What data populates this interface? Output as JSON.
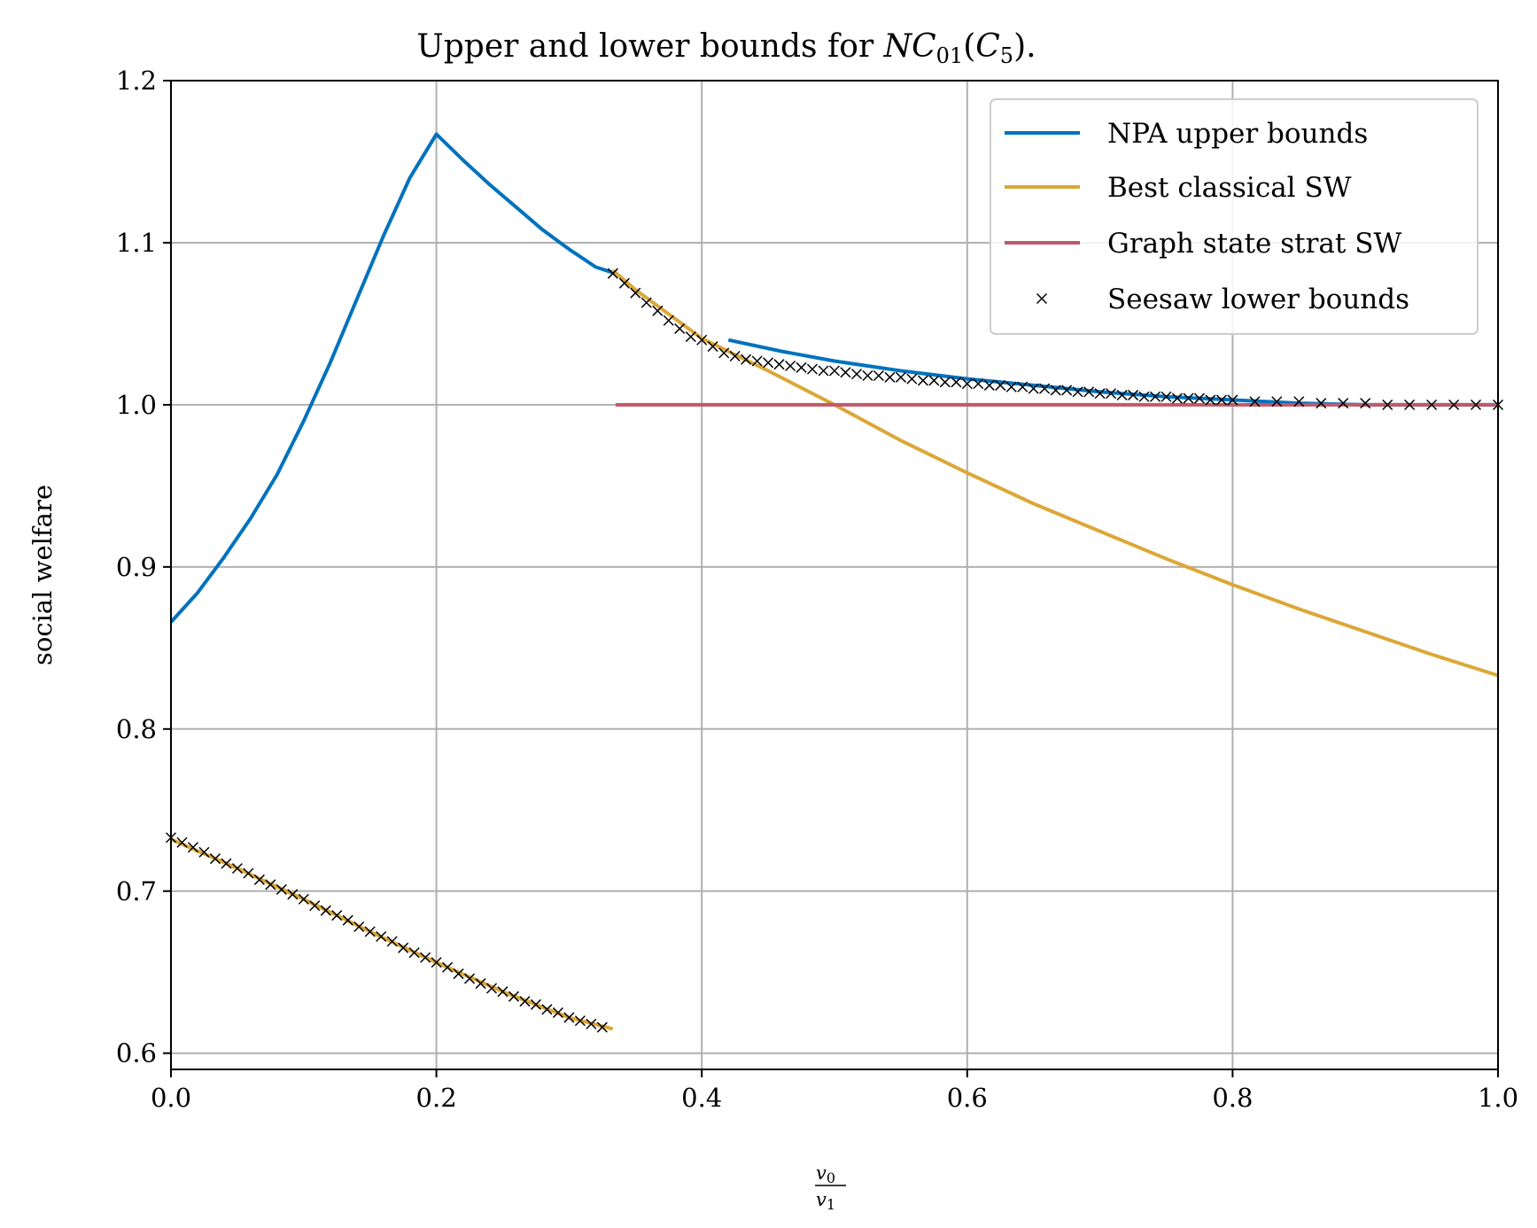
{
  "chart_data": {
    "type": "line",
    "title_prefix": "Upper and lower bounds for ",
    "title_math": {
      "nc": "NC",
      "sub01": "01",
      "open": "(",
      "c": "C",
      "sub5": "5",
      "close": ")."
    },
    "xlabel": {
      "numerator": "v",
      "numerator_sub": "0",
      "denominator": "v",
      "denominator_sub": "1"
    },
    "ylabel": "social welfare",
    "xlim": [
      0.0,
      1.0
    ],
    "ylim": [
      0.59,
      1.2
    ],
    "xticks": [
      0.0,
      0.2,
      0.4,
      0.6,
      0.8,
      1.0
    ],
    "xtick_labels": [
      "0.0",
      "0.2",
      "0.4",
      "0.6",
      "0.8",
      "1.0"
    ],
    "yticks": [
      0.6,
      0.7,
      0.8,
      0.9,
      1.0,
      1.1,
      1.2
    ],
    "ytick_labels": [
      "0.6",
      "0.7",
      "0.8",
      "0.9",
      "1.0",
      "1.1",
      "1.2"
    ],
    "grid": true,
    "legend_position": "top-right",
    "series": [
      {
        "name": "NPA upper bounds",
        "kind": "line",
        "color": "#0072BD",
        "segments": [
          {
            "x": [
              0.0,
              0.02,
              0.04,
              0.06,
              0.08,
              0.1,
              0.12,
              0.14,
              0.16,
              0.18,
              0.2,
              0.22,
              0.24,
              0.26,
              0.28,
              0.3,
              0.32,
              0.335
            ],
            "y": [
              0.866,
              0.884,
              0.906,
              0.93,
              0.957,
              0.99,
              1.026,
              1.065,
              1.104,
              1.14,
              1.167,
              1.151,
              1.136,
              1.122,
              1.108,
              1.096,
              1.085,
              1.081
            ]
          },
          {
            "x": [
              0.42,
              0.46,
              0.5,
              0.55,
              0.6,
              0.65,
              0.7,
              0.75,
              0.8,
              0.85,
              0.9,
              0.95,
              1.0
            ],
            "y": [
              1.04,
              1.033,
              1.027,
              1.021,
              1.016,
              1.012,
              1.008,
              1.005,
              1.003,
              1.001,
              1.0,
              1.0,
              1.0
            ]
          }
        ]
      },
      {
        "name": "Best classical SW",
        "kind": "line",
        "color": "#DBA737",
        "segments": [
          {
            "x": [
              0.0,
              0.05,
              0.1,
              0.15,
              0.2,
              0.25,
              0.3,
              0.333
            ],
            "y": [
              0.732,
              0.714,
              0.695,
              0.675,
              0.656,
              0.638,
              0.622,
              0.615
            ]
          },
          {
            "x": [
              0.333,
              0.35,
              0.4,
              0.45,
              0.5,
              0.55,
              0.6,
              0.65,
              0.7,
              0.75,
              0.8,
              0.85,
              0.9,
              0.95,
              1.0
            ],
            "y": [
              1.083,
              1.071,
              1.041,
              1.021,
              1.0,
              0.978,
              0.958,
              0.939,
              0.922,
              0.905,
              0.889,
              0.874,
              0.86,
              0.846,
              0.833
            ]
          }
        ]
      },
      {
        "name": "Graph state strat SW",
        "kind": "line",
        "color": "#C0596A",
        "segments": [
          {
            "x": [
              0.335,
              1.0
            ],
            "y": [
              1.0,
              1.0
            ]
          }
        ]
      },
      {
        "name": "Seesaw lower bounds",
        "kind": "scatter",
        "marker": "x",
        "color": "#000000",
        "x": [
          0.0,
          0.00833,
          0.01667,
          0.025,
          0.03333,
          0.04167,
          0.05,
          0.05833,
          0.06667,
          0.075,
          0.08333,
          0.09167,
          0.1,
          0.10833,
          0.11667,
          0.125,
          0.13333,
          0.14167,
          0.15,
          0.15833,
          0.16667,
          0.175,
          0.18333,
          0.19167,
          0.2,
          0.20833,
          0.21667,
          0.225,
          0.23333,
          0.24167,
          0.25,
          0.25833,
          0.26667,
          0.275,
          0.28333,
          0.29167,
          0.3,
          0.30833,
          0.31667,
          0.325,
          0.333,
          0.3417,
          0.35,
          0.3583,
          0.3667,
          0.375,
          0.3833,
          0.3917,
          0.4,
          0.4083,
          0.4167,
          0.425,
          0.4333,
          0.4417,
          0.45,
          0.4583,
          0.4667,
          0.475,
          0.4833,
          0.4917,
          0.5,
          0.5083,
          0.5167,
          0.525,
          0.5333,
          0.5417,
          0.55,
          0.5583,
          0.5667,
          0.575,
          0.5833,
          0.5917,
          0.6,
          0.6083,
          0.6167,
          0.625,
          0.6333,
          0.6417,
          0.65,
          0.6583,
          0.6667,
          0.675,
          0.6833,
          0.6917,
          0.7,
          0.7083,
          0.7167,
          0.725,
          0.7333,
          0.7417,
          0.75,
          0.7583,
          0.7667,
          0.775,
          0.7833,
          0.7917,
          0.8,
          0.8167,
          0.8333,
          0.85,
          0.8667,
          0.8833,
          0.9,
          0.9167,
          0.9333,
          0.95,
          0.9667,
          0.9833,
          1.0
        ],
        "y": [
          0.733,
          0.73,
          0.727,
          0.724,
          0.72,
          0.717,
          0.714,
          0.711,
          0.707,
          0.704,
          0.701,
          0.698,
          0.695,
          0.691,
          0.688,
          0.685,
          0.682,
          0.678,
          0.675,
          0.672,
          0.669,
          0.665,
          0.662,
          0.659,
          0.656,
          0.653,
          0.649,
          0.646,
          0.643,
          0.64,
          0.638,
          0.635,
          0.632,
          0.63,
          0.627,
          0.625,
          0.622,
          0.62,
          0.618,
          0.616,
          1.081,
          1.075,
          1.069,
          1.063,
          1.058,
          1.052,
          1.047,
          1.042,
          1.04,
          1.036,
          1.032,
          1.03,
          1.028,
          1.027,
          1.026,
          1.025,
          1.024,
          1.023,
          1.022,
          1.021,
          1.021,
          1.02,
          1.019,
          1.018,
          1.018,
          1.017,
          1.017,
          1.016,
          1.015,
          1.015,
          1.014,
          1.014,
          1.013,
          1.013,
          1.012,
          1.012,
          1.011,
          1.011,
          1.01,
          1.01,
          1.009,
          1.009,
          1.008,
          1.008,
          1.007,
          1.007,
          1.006,
          1.006,
          1.005,
          1.005,
          1.005,
          1.004,
          1.004,
          1.004,
          1.003,
          1.003,
          1.003,
          1.002,
          1.002,
          1.002,
          1.001,
          1.001,
          1.001,
          1.0,
          1.0,
          1.0,
          1.0,
          1.0,
          1.0
        ]
      }
    ]
  }
}
